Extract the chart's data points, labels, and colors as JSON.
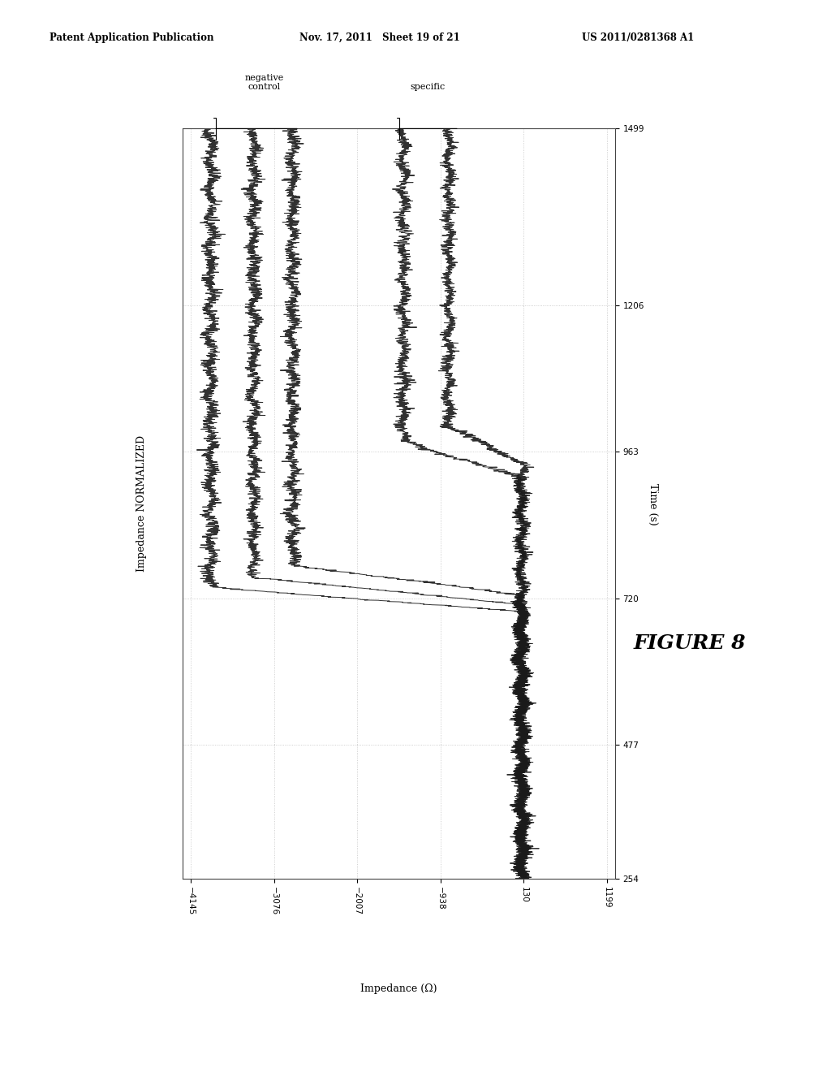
{
  "title": "FIGURE 8",
  "time_label": "Time (s)",
  "impedance_label": "Impedance (Ω)",
  "ylabel_normalized": "Impedance NORMALIZED",
  "time_ticks": [
    254,
    477,
    720,
    963,
    1206,
    1499
  ],
  "imp_ticks": [
    1199,
    130,
    -938,
    -2007,
    -3076,
    -4145
  ],
  "time_min": 254,
  "time_max": 1499,
  "imp_min": -4145,
  "imp_max": 1199,
  "annotation_negative": "negative\ncontrol",
  "annotation_specific": "specific",
  "header_left": "Patent Application Publication",
  "header_mid": "Nov. 17, 2011   Sheet 19 of 21",
  "header_right": "US 2011/0281368 A1",
  "bg_color": "#ffffff",
  "line_color": "#1a1a1a",
  "grid_color": "#bbbbbb"
}
